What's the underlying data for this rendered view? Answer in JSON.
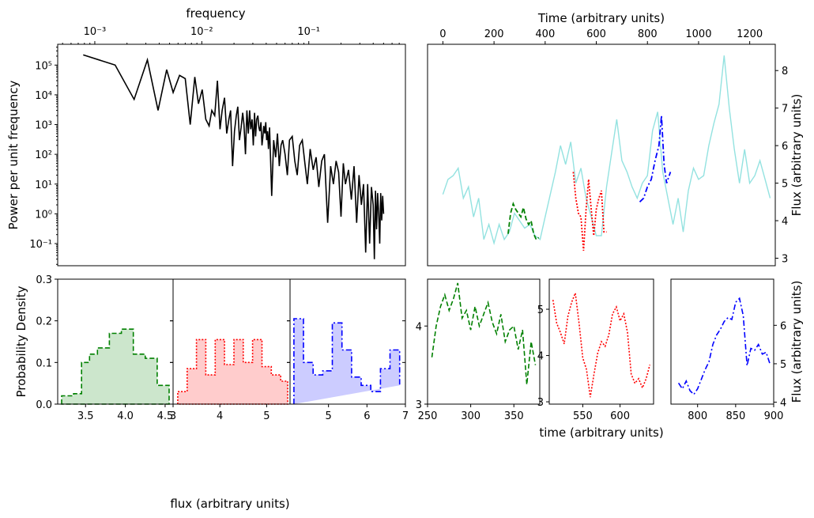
{
  "chart_data": [
    {
      "panel": "power-spectrum",
      "type": "line",
      "xscale": "log",
      "yscale": "log",
      "xlabel": "frequency",
      "ylabel": "Power per unit frequency",
      "xlim": [
        0.00045,
        0.8
      ],
      "ylim": [
        0.018,
        500000
      ],
      "xticks": [
        {
          "v": 0.001,
          "label": "10⁻³"
        },
        {
          "v": 0.01,
          "label": "10⁻²"
        },
        {
          "v": 0.1,
          "label": "10⁻¹"
        }
      ],
      "yticks": [
        {
          "v": 0.1,
          "label": "10⁻¹"
        },
        {
          "v": 1,
          "label": "10⁰"
        },
        {
          "v": 10,
          "label": "10¹"
        },
        {
          "v": 100,
          "label": "10²"
        },
        {
          "v": 1000,
          "label": "10³"
        },
        {
          "v": 10000,
          "label": "10⁴"
        },
        {
          "v": 100000,
          "label": "10⁵"
        }
      ],
      "color": "#000000",
      "series": [
        {
          "x": [
            0.00078,
            0.00155,
            0.00233,
            0.0031,
            0.0039,
            0.0047,
            0.0054,
            0.0062,
            0.007,
            0.0078,
            0.0086,
            0.0093,
            0.0101,
            0.0109,
            0.0117,
            0.0124,
            0.0132,
            0.014,
            0.0148,
            0.0155,
            0.0163,
            0.0171,
            0.0179,
            0.0186,
            0.0194,
            0.0202,
            0.021,
            0.0217,
            0.0225,
            0.0233,
            0.0241,
            0.0248,
            0.0256,
            0.0264,
            0.0272,
            0.028,
            0.0287,
            0.0295,
            0.0303,
            0.0311,
            0.0318,
            0.0326,
            0.0334,
            0.0342,
            0.0349,
            0.0357,
            0.0365,
            0.0373,
            0.038,
            0.0388,
            0.0396,
            0.0404,
            0.0412,
            0.042,
            0.043,
            0.045,
            0.047,
            0.049,
            0.051,
            0.053,
            0.055,
            0.057,
            0.06,
            0.063,
            0.066,
            0.07,
            0.074,
            0.078,
            0.082,
            0.087,
            0.092,
            0.097,
            0.103,
            0.11,
            0.117,
            0.124,
            0.132,
            0.14,
            0.15,
            0.16,
            0.17,
            0.18,
            0.19,
            0.2,
            0.21,
            0.22,
            0.235,
            0.25,
            0.265,
            0.28,
            0.295,
            0.31,
            0.325,
            0.34,
            0.355,
            0.37,
            0.385,
            0.4,
            0.41,
            0.42,
            0.43,
            0.44,
            0.45,
            0.46,
            0.47,
            0.48,
            0.49,
            0.5
          ],
          "y": [
            220000,
            100000,
            7000,
            150000,
            3000,
            70000,
            12000,
            45000,
            35000,
            1000,
            40000,
            5000,
            15000,
            1500,
            900,
            3000,
            2000,
            30000,
            700,
            3000,
            8000,
            500,
            1500,
            3000,
            40,
            600,
            2000,
            4000,
            300,
            800,
            2500,
            1000,
            100,
            3000,
            500,
            3000,
            700,
            1500,
            200,
            2500,
            400,
            1500,
            2000,
            800,
            600,
            1200,
            200,
            400,
            900,
            500,
            1200,
            300,
            600,
            150,
            800,
            4,
            300,
            80,
            500,
            40,
            200,
            300,
            100,
            20,
            300,
            400,
            60,
            20,
            200,
            300,
            50,
            10,
            150,
            30,
            80,
            8,
            60,
            100,
            0.5,
            40,
            10,
            60,
            25,
            0.8,
            50,
            10,
            30,
            3,
            40,
            0.5,
            20,
            2,
            10,
            0.05,
            10,
            0.1,
            8,
            2,
            0.03,
            6,
            0.3,
            5,
            1,
            0.1,
            5,
            0.6,
            4,
            1
          ]
        }
      ]
    },
    {
      "panel": "lightcurve",
      "type": "line",
      "xlabel": "Time (arbitrary units)",
      "ylabel": "Flux (arbitrary units)",
      "xlim": [
        -60,
        1300
      ],
      "ylim": [
        2.8,
        8.7
      ],
      "xticks": [
        0,
        200,
        400,
        600,
        800,
        1000,
        1200
      ],
      "yticks": [
        3,
        4,
        5,
        6,
        7,
        8
      ],
      "series": [
        {
          "name": "full",
          "color": "#93e2e0",
          "style": "solid",
          "x": [
            0,
            20,
            40,
            60,
            80,
            100,
            120,
            140,
            160,
            180,
            200,
            220,
            240,
            260,
            280,
            300,
            320,
            340,
            360,
            380,
            400,
            420,
            440,
            460,
            480,
            500,
            520,
            540,
            560,
            580,
            600,
            620,
            640,
            660,
            680,
            700,
            720,
            740,
            760,
            780,
            800,
            820,
            840,
            860,
            880,
            900,
            920,
            940,
            960,
            980,
            1000,
            1020,
            1040,
            1060,
            1080,
            1100,
            1120,
            1140,
            1160,
            1180,
            1200,
            1220,
            1240,
            1260,
            1280
          ],
          "y": [
            4.7,
            5.1,
            5.2,
            5.4,
            4.6,
            4.9,
            4.1,
            4.6,
            3.5,
            3.9,
            3.4,
            3.9,
            3.5,
            3.7,
            4.2,
            4.0,
            3.8,
            3.9,
            3.6,
            3.5,
            4.1,
            4.7,
            5.3,
            6.0,
            5.5,
            6.1,
            5.0,
            5.4,
            4.6,
            4.1,
            3.6,
            3.6,
            4.9,
            5.8,
            6.7,
            5.6,
            5.3,
            4.9,
            4.6,
            5.0,
            5.2,
            6.4,
            6.9,
            5.3,
            4.6,
            3.9,
            4.6,
            3.7,
            4.8,
            5.4,
            5.1,
            5.2,
            6.0,
            6.6,
            7.1,
            8.4,
            7.0,
            5.9,
            5.0,
            5.9,
            5.0,
            5.2,
            5.6,
            5.1,
            4.6
          ]
        },
        {
          "name": "segment-1",
          "color": "#008000",
          "style": "dashed",
          "x": [
            255,
            265,
            275,
            285,
            295,
            305,
            315,
            325,
            335,
            345,
            355,
            365,
            375
          ],
          "y": [
            3.65,
            4.2,
            4.45,
            4.3,
            4.2,
            4.1,
            4.35,
            4.05,
            3.9,
            4.0,
            3.65,
            3.5,
            3.55
          ]
        },
        {
          "name": "segment-2",
          "color": "#ff0000",
          "style": "dotted",
          "x": [
            510,
            520,
            530,
            540,
            550,
            560,
            570,
            580,
            590,
            600,
            610,
            620,
            630,
            640
          ],
          "y": [
            5.3,
            4.6,
            4.2,
            4.1,
            3.2,
            4.3,
            5.1,
            4.3,
            3.6,
            4.3,
            4.6,
            4.8,
            3.7,
            3.7
          ]
        },
        {
          "name": "segment-3",
          "color": "#0000ff",
          "style": "dashdot",
          "x": [
            770,
            785,
            800,
            815,
            830,
            845,
            855,
            865,
            875,
            890
          ],
          "y": [
            4.5,
            4.6,
            4.9,
            5.1,
            5.6,
            6.0,
            6.8,
            5.5,
            5.0,
            5.3
          ]
        }
      ]
    },
    {
      "panel": "hist-green",
      "type": "bar",
      "style": "step-filled",
      "ylabel": "Probability Density",
      "xlim": [
        3.15,
        4.6
      ],
      "ylim": [
        0,
        0.3
      ],
      "xticks": [
        {
          "v": 3.5,
          "label": "3.5"
        },
        {
          "v": 4.0,
          "label": "4.0"
        },
        {
          "v": 4.5,
          "label": "4.5"
        }
      ],
      "yticks": [
        {
          "v": 0,
          "label": "0.0"
        },
        {
          "v": 0.1,
          "label": "0.1"
        },
        {
          "v": 0.2,
          "label": "0.2"
        },
        {
          "v": 0.3,
          "label": "0.3"
        }
      ],
      "edges": [
        3.2,
        3.35,
        3.45,
        3.55,
        3.65,
        3.8,
        3.95,
        4.1,
        4.25,
        4.4,
        4.55
      ],
      "values": [
        0.02,
        0.025,
        0.1,
        0.12,
        0.135,
        0.17,
        0.18,
        0.12,
        0.11,
        0.045
      ],
      "tail": [
        4.4,
        0.015
      ],
      "edge": "#008000",
      "fill": "#cce6cc",
      "line": "dashed"
    },
    {
      "panel": "hist-red",
      "type": "bar",
      "style": "step-filled",
      "xlim": [
        3.0,
        5.5
      ],
      "ylim": [
        0,
        0.3
      ],
      "xticks": [
        {
          "v": 3,
          "label": "3"
        },
        {
          "v": 4,
          "label": "4"
        },
        {
          "v": 5,
          "label": "5"
        }
      ],
      "yticks": [
        {
          "v": 0,
          "label": ""
        },
        {
          "v": 0.1,
          "label": ""
        },
        {
          "v": 0.2,
          "label": ""
        },
        {
          "v": 0.3,
          "label": ""
        }
      ],
      "edges": [
        3.1,
        3.3,
        3.5,
        3.7,
        3.9,
        4.1,
        4.3,
        4.5,
        4.7,
        4.9,
        5.1,
        5.3,
        5.45
      ],
      "values": [
        0.03,
        0.085,
        0.155,
        0.07,
        0.155,
        0.095,
        0.155,
        0.1,
        0.155,
        0.09,
        0.07,
        0.055
      ],
      "edge": "#ff0000",
      "fill": "#ffcccc",
      "line": "dotted"
    },
    {
      "panel": "hist-blue",
      "type": "bar",
      "style": "step-filled",
      "xlim": [
        4.0,
        7.0
      ],
      "ylim": [
        0,
        0.3
      ],
      "xticks": [
        {
          "v": 5,
          "label": "5"
        },
        {
          "v": 6,
          "label": "6"
        },
        {
          "v": 7,
          "label": "7"
        }
      ],
      "yticks": [
        {
          "v": 0,
          "label": ""
        },
        {
          "v": 0.1,
          "label": ""
        },
        {
          "v": 0.2,
          "label": ""
        },
        {
          "v": 0.3,
          "label": ""
        }
      ],
      "edges": [
        4.1,
        4.35,
        4.6,
        4.85,
        5.1,
        5.35,
        5.6,
        5.85,
        6.1,
        6.35,
        6.6,
        6.85
      ],
      "values": [
        0.205,
        0.1,
        0.07,
        0.08,
        0.195,
        0.13,
        0.065,
        0.045,
        0.03,
        0.085,
        0.13,
        0.045
      ],
      "tail": [
        6.6,
        0.025
      ],
      "edge": "#0000ff",
      "fill": "#ccccff",
      "line": "dashdot"
    },
    {
      "panel": "seg-green",
      "type": "line",
      "xlim": [
        250,
        380
      ],
      "ylim": [
        3.0,
        4.6
      ],
      "xticks": [
        {
          "v": 250,
          "label": "250"
        },
        {
          "v": 300,
          "label": "300"
        },
        {
          "v": 350,
          "label": "350"
        }
      ],
      "yticks": [
        {
          "v": 3,
          "label": "3"
        },
        {
          "v": 4,
          "label": "4"
        }
      ],
      "color": "#008000",
      "line": "dashed",
      "x": [
        255,
        260,
        265,
        270,
        275,
        280,
        285,
        290,
        295,
        300,
        305,
        310,
        315,
        320,
        325,
        330,
        335,
        340,
        345,
        350,
        355,
        360,
        365,
        370,
        375
      ],
      "y": [
        3.6,
        4.0,
        4.25,
        4.4,
        4.2,
        4.35,
        4.55,
        4.1,
        4.2,
        3.95,
        4.25,
        4.0,
        4.15,
        4.3,
        4.05,
        3.9,
        4.15,
        3.8,
        3.95,
        4.0,
        3.7,
        3.95,
        3.25,
        3.8,
        3.5
      ]
    },
    {
      "panel": "seg-red",
      "type": "line",
      "xlim": [
        505,
        645
      ],
      "ylim": [
        2.95,
        5.65
      ],
      "xticks": [
        {
          "v": 550,
          "label": "550"
        },
        {
          "v": 600,
          "label": "600"
        }
      ],
      "yticks": [
        {
          "v": 3,
          "label": "3"
        },
        {
          "v": 4,
          "label": "4"
        },
        {
          "v": 5,
          "label": "5"
        }
      ],
      "color": "#ff0000",
      "line": "dotted",
      "x": [
        510,
        515,
        520,
        525,
        530,
        535,
        540,
        545,
        550,
        555,
        560,
        565,
        570,
        575,
        580,
        585,
        590,
        595,
        600,
        605,
        610,
        615,
        620,
        625,
        630,
        635,
        640
      ],
      "y": [
        5.2,
        4.7,
        4.5,
        4.25,
        4.85,
        5.15,
        5.35,
        4.7,
        3.95,
        3.7,
        3.1,
        3.6,
        4.05,
        4.3,
        4.2,
        4.45,
        4.9,
        5.05,
        4.75,
        4.9,
        4.5,
        3.6,
        3.4,
        3.5,
        3.3,
        3.5,
        3.8
      ]
    },
    {
      "panel": "seg-blue",
      "type": "line",
      "xlim": [
        765,
        900
      ],
      "ylim": [
        3.95,
        7.2
      ],
      "xticks": [
        {
          "v": 800,
          "label": "800"
        },
        {
          "v": 850,
          "label": "850"
        },
        {
          "v": 900,
          "label": "900"
        }
      ],
      "yticks": [
        {
          "v": 4,
          "label": "4"
        },
        {
          "v": 5,
          "label": "5"
        },
        {
          "v": 6,
          "label": "6"
        }
      ],
      "ylabel": "Flux (arbitrary units)",
      "color": "#0000ff",
      "line": "dashdot",
      "x": [
        775,
        780,
        785,
        790,
        795,
        800,
        805,
        810,
        815,
        820,
        825,
        830,
        835,
        840,
        845,
        850,
        855,
        860,
        865,
        870,
        875,
        880,
        885,
        890,
        895
      ],
      "y": [
        4.5,
        4.35,
        4.55,
        4.3,
        4.2,
        4.35,
        4.6,
        4.85,
        5.05,
        5.5,
        5.75,
        5.9,
        6.1,
        6.2,
        6.15,
        6.6,
        6.7,
        6.25,
        4.95,
        5.4,
        5.35,
        5.5,
        5.25,
        5.3,
        5.0
      ]
    }
  ],
  "shared_labels": {
    "time_bottom": "time (arbitrary units)",
    "flux_bottom": "flux (arbitrary units)"
  }
}
